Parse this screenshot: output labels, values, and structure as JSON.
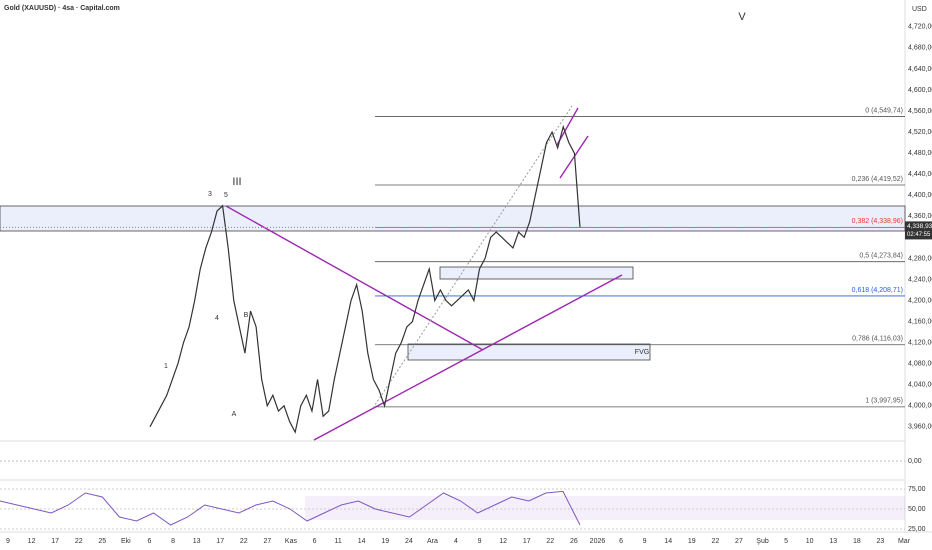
{
  "chart_data": {
    "type": "line",
    "title": "Gold (XAUUSD) · 4sa · Capital.com",
    "currency": "USD",
    "ylim": [
      3935,
      4771
    ],
    "yticks": [
      {
        "value": 4720,
        "label": "4,720,00"
      },
      {
        "value": 4680,
        "label": "4,680,00"
      },
      {
        "value": 4640,
        "label": "4,640,00"
      },
      {
        "value": 4600,
        "label": "4,600,00"
      },
      {
        "value": 4560,
        "label": "4,560,00"
      },
      {
        "value": 4520,
        "label": "4,520,00"
      },
      {
        "value": 4480,
        "label": "4,480,00"
      },
      {
        "value": 4440,
        "label": "4,440,00"
      },
      {
        "value": 4400,
        "label": "4,400,00"
      },
      {
        "value": 4360,
        "label": "4,360,00"
      },
      {
        "value": 4280,
        "label": "4,280,00"
      },
      {
        "value": 4240,
        "label": "4,240,00"
      },
      {
        "value": 4200,
        "label": "4,200,00"
      },
      {
        "value": 4160,
        "label": "4,160,00"
      },
      {
        "value": 4120,
        "label": "4,120,00"
      },
      {
        "value": 4080,
        "label": "4,080,00"
      },
      {
        "value": 4040,
        "label": "4,040,00"
      },
      {
        "value": 4000,
        "label": "4,000,00"
      },
      {
        "value": 3960,
        "label": "3,960,00"
      }
    ],
    "last_price": {
      "value": 4338.93,
      "label": "4,338,93"
    },
    "countdown": "02:47:55",
    "series": [
      {
        "color": "#333333",
        "values": [
          3960,
          3980,
          4000,
          4020,
          4050,
          4080,
          4120,
          4150,
          4200,
          4260,
          4300,
          4330,
          4370,
          4380,
          4300,
          4200,
          4150,
          4100,
          4180,
          4150,
          4050,
          4000,
          4020,
          3990,
          4000,
          3970,
          3950,
          4000,
          4020,
          3990,
          4050,
          3980,
          3990,
          4050,
          4100,
          4150,
          4200,
          4230,
          4180,
          4100,
          4050,
          4030,
          4000,
          4050,
          4100,
          4120,
          4150,
          4160,
          4200,
          4230,
          4260,
          4200,
          4220,
          4200,
          4190,
          4200,
          4210,
          4220,
          4200,
          4260,
          4280,
          4320,
          4330,
          4320,
          4310,
          4300,
          4330,
          4320,
          4350,
          4400,
          4450,
          4500,
          4520,
          4490,
          4530,
          4500,
          4480,
          4338.93
        ]
      }
    ],
    "fib_levels": [
      {
        "value": 4549.74,
        "label": "0 (4,549,74)"
      },
      {
        "value": 4419.52,
        "label": "0,236 (4,419,52)"
      },
      {
        "value": 4338.96,
        "label": "0,382 (4,338,96)"
      },
      {
        "value": 4273.84,
        "label": "0,5 (4,273,84)"
      },
      {
        "value": 4208.71,
        "label": "0,618 (4,208,71)"
      },
      {
        "value": 4116.03,
        "label": "0,786 (4,116,03)"
      },
      {
        "value": 3997.95,
        "label": "1 (3,997,95)"
      }
    ],
    "annotations": [
      "III",
      "V",
      "3",
      "5",
      "4",
      "B",
      "A",
      "1",
      "FVG"
    ],
    "macd": {
      "ylim": [
        -20,
        20
      ],
      "yticks": [
        {
          "value": 0,
          "label": "0,00"
        }
      ]
    },
    "rsi": {
      "ylim": [
        23.75,
        86.25
      ],
      "yticks": [
        {
          "value": 75,
          "label": "75,00"
        },
        {
          "value": 50,
          "label": "50,00"
        },
        {
          "value": 25,
          "label": "25,00"
        }
      ],
      "values": [
        60,
        55,
        50,
        45,
        55,
        70,
        65,
        40,
        35,
        45,
        30,
        40,
        55,
        50,
        45,
        55,
        60,
        50,
        35,
        45,
        55,
        60,
        50,
        45,
        40,
        55,
        70,
        60,
        45,
        55,
        65,
        60,
        70,
        72,
        30
      ]
    },
    "x_labels": [
      "9",
      "12",
      "17",
      "22",
      "25",
      "Eki",
      "6",
      "8",
      "13",
      "17",
      "22",
      "27",
      "Kas",
      "6",
      "11",
      "14",
      "19",
      "24",
      "Ara",
      "4",
      "9",
      "12",
      "17",
      "22",
      "26",
      "2026",
      "6",
      "9",
      "14",
      "19",
      "22",
      "27",
      "Şub",
      "5",
      "10",
      "13",
      "18",
      "23",
      "Mar"
    ]
  }
}
